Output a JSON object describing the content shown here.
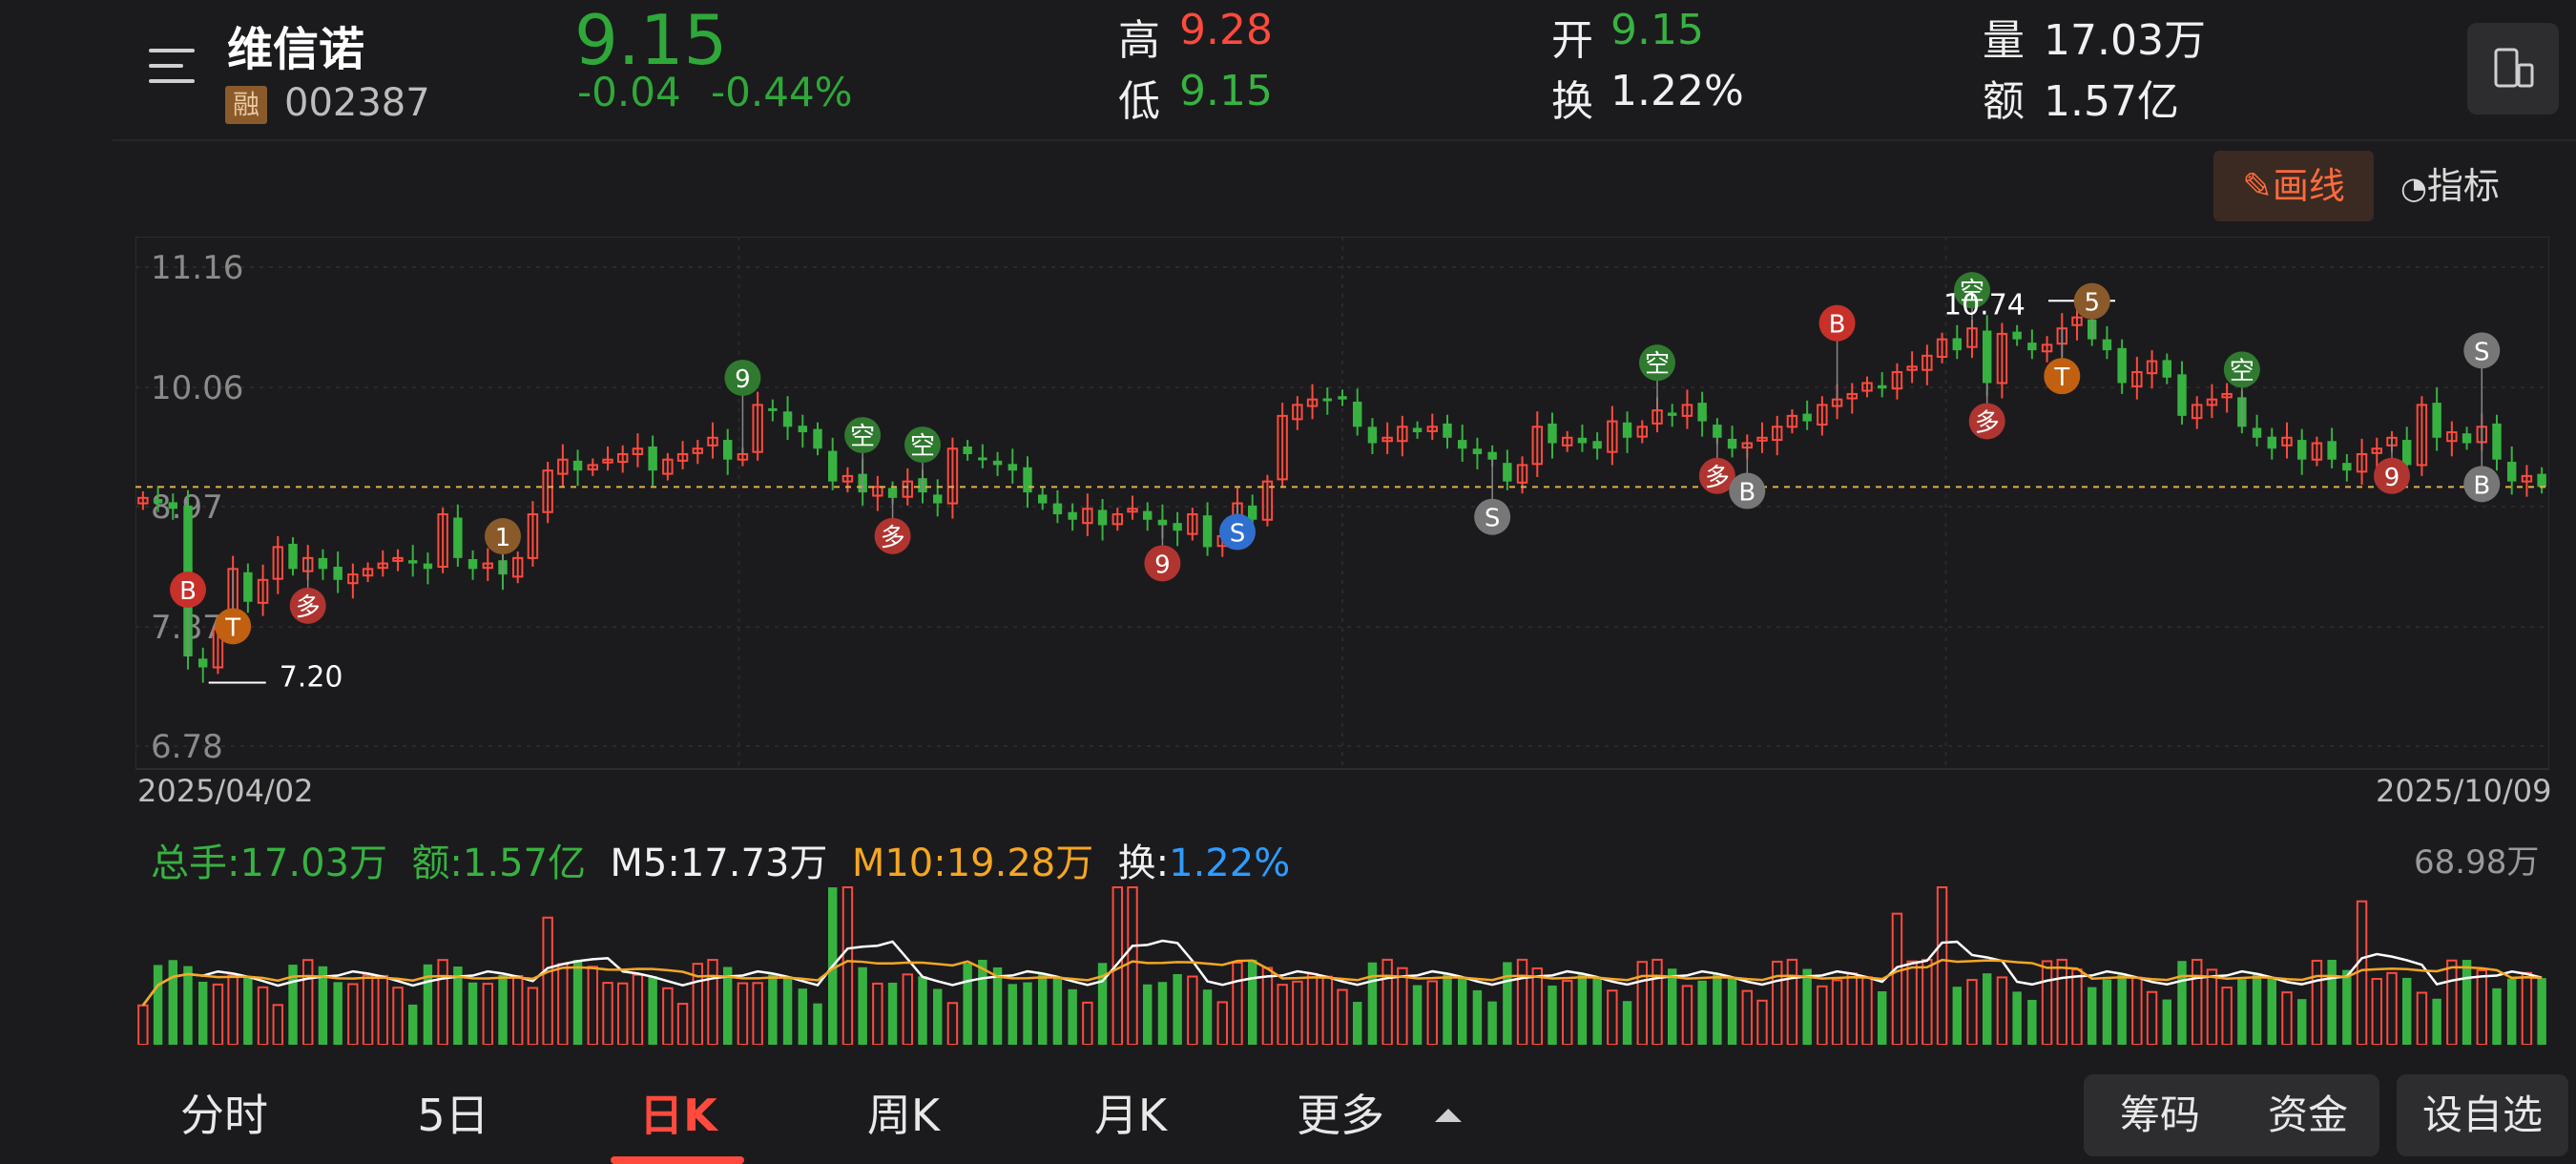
{
  "stock": {
    "name": "维信诺",
    "badge": "融",
    "code": "002387",
    "price": "9.15",
    "change": "-0.04",
    "change_pct": "-0.44%"
  },
  "quote": {
    "high_label": "高",
    "high": "9.28",
    "low_label": "低",
    "low": "9.15",
    "open_label": "开",
    "open": "9.15",
    "turnover_label": "换",
    "turnover": "1.22%",
    "volume_label": "量",
    "volume": "17.03万",
    "amount_label": "额",
    "amount": "1.57亿"
  },
  "toolbar": {
    "draw_label": "画线",
    "indicator_label": "指标"
  },
  "chart_data": {
    "type": "candlestick",
    "y_ticks": [
      "11.16",
      "10.06",
      "8.97",
      "7.87",
      "6.78"
    ],
    "ylim": [
      6.78,
      11.16
    ],
    "start_date": "2025/04/02",
    "end_date": "2025/10/09",
    "max_label": "10.74",
    "min_label": "7.20",
    "closes": [
      9.05,
      9.0,
      8.95,
      7.6,
      7.5,
      7.85,
      8.4,
      8.1,
      8.3,
      8.6,
      8.4,
      8.5,
      8.4,
      8.3,
      8.35,
      8.4,
      8.45,
      8.5,
      8.45,
      8.4,
      8.9,
      8.5,
      8.4,
      8.45,
      8.35,
      8.5,
      8.9,
      9.3,
      9.4,
      9.3,
      9.35,
      9.4,
      9.45,
      9.5,
      9.3,
      9.4,
      9.45,
      9.5,
      9.6,
      9.4,
      9.45,
      9.9,
      9.85,
      9.7,
      9.65,
      9.5,
      9.2,
      9.25,
      9.1,
      9.15,
      9.05,
      9.2,
      9.1,
      9.0,
      9.5,
      9.45,
      9.4,
      9.35,
      9.3,
      9.1,
      9.0,
      8.9,
      8.85,
      8.95,
      8.8,
      8.9,
      8.95,
      8.85,
      8.8,
      8.75,
      8.9,
      8.6,
      8.7,
      9.0,
      8.85,
      9.2,
      9.8,
      9.9,
      9.95,
      9.95,
      9.95,
      9.7,
      9.55,
      9.6,
      9.7,
      9.65,
      9.7,
      9.6,
      9.5,
      9.45,
      9.4,
      9.2,
      9.35,
      9.7,
      9.55,
      9.6,
      9.55,
      9.5,
      9.75,
      9.6,
      9.7,
      9.85,
      9.8,
      9.9,
      9.75,
      9.6,
      9.5,
      9.55,
      9.6,
      9.7,
      9.8,
      9.75,
      9.9,
      9.95,
      10.0,
      10.1,
      10.05,
      10.2,
      10.25,
      10.35,
      10.5,
      10.4,
      10.6,
      10.1,
      10.55,
      10.5,
      10.4,
      10.45,
      10.6,
      10.7,
      10.5,
      10.4,
      10.1,
      10.2,
      10.3,
      10.15,
      9.8,
      9.9,
      9.95,
      10.0,
      9.7,
      9.6,
      9.5,
      9.6,
      9.4,
      9.55,
      9.4,
      9.3,
      9.45,
      9.5,
      9.6,
      9.35,
      9.9,
      9.6,
      9.65,
      9.55,
      9.7,
      9.4,
      9.2,
      9.25,
      9.15
    ]
  },
  "volume": {
    "total_label": "总手:17.03万",
    "amount_label": "额:1.57亿",
    "m5_label": "M5:17.73万",
    "m10_label": "M10:19.28万",
    "turnover_prefix": "换:",
    "turnover_value": "1.22%",
    "max_label": "68.98万"
  },
  "tabs": [
    {
      "label": "分时"
    },
    {
      "label": "5日"
    },
    {
      "label": "日K"
    },
    {
      "label": "周K"
    },
    {
      "label": "月K"
    },
    {
      "label": "更多"
    }
  ],
  "right_buttons": {
    "chips": "筹码",
    "funds": "资金",
    "watch": "设自选"
  },
  "colors": {
    "up": "#ff4a3d",
    "down": "#37b241",
    "accent": "#ff6a3d",
    "ma5": "#ffffff",
    "ma10": "#f5a623"
  }
}
